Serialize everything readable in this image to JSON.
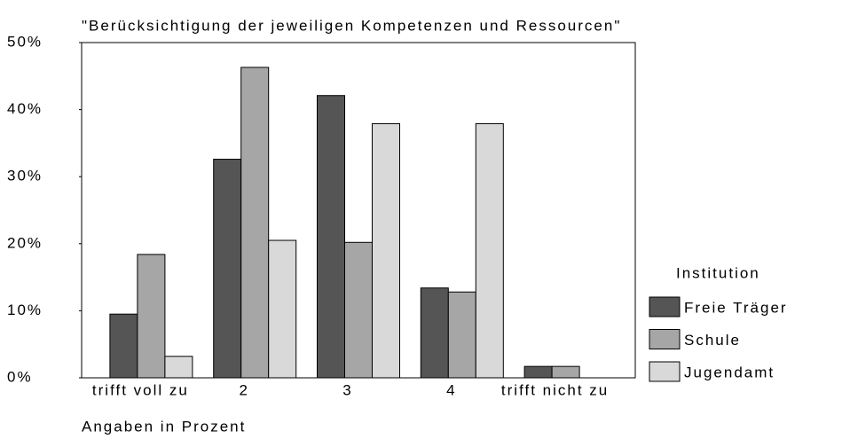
{
  "chart_data": {
    "type": "bar",
    "title": "\"Berücksichtigung der jeweiligen Kompetenzen und Ressourcen\"",
    "x_label": "Angaben in Prozent",
    "categories": [
      "trifft voll zu",
      "2",
      "3",
      "4",
      "trifft nicht zu"
    ],
    "series": [
      {
        "name": "Freie Träger",
        "color": "#555555",
        "values": [
          9.5,
          32.6,
          42.1,
          13.4,
          1.7
        ]
      },
      {
        "name": "Schule",
        "color": "#a6a6a6",
        "values": [
          18.4,
          46.3,
          20.2,
          12.8,
          1.7
        ]
      },
      {
        "name": "Jugendamt",
        "color": "#d9d9d9",
        "values": [
          3.2,
          20.5,
          37.9,
          37.9,
          0
        ]
      }
    ],
    "legend_title": "Institution",
    "legend": "right",
    "ylim": [
      0,
      50
    ],
    "yticks": [
      {
        "value": 0,
        "label": "0%"
      },
      {
        "value": 10,
        "label": "10%"
      },
      {
        "value": 20,
        "label": "20%"
      },
      {
        "value": 30,
        "label": "30%"
      },
      {
        "value": 40,
        "label": "40%"
      },
      {
        "value": 50,
        "label": "50%"
      }
    ],
    "grid": false
  }
}
